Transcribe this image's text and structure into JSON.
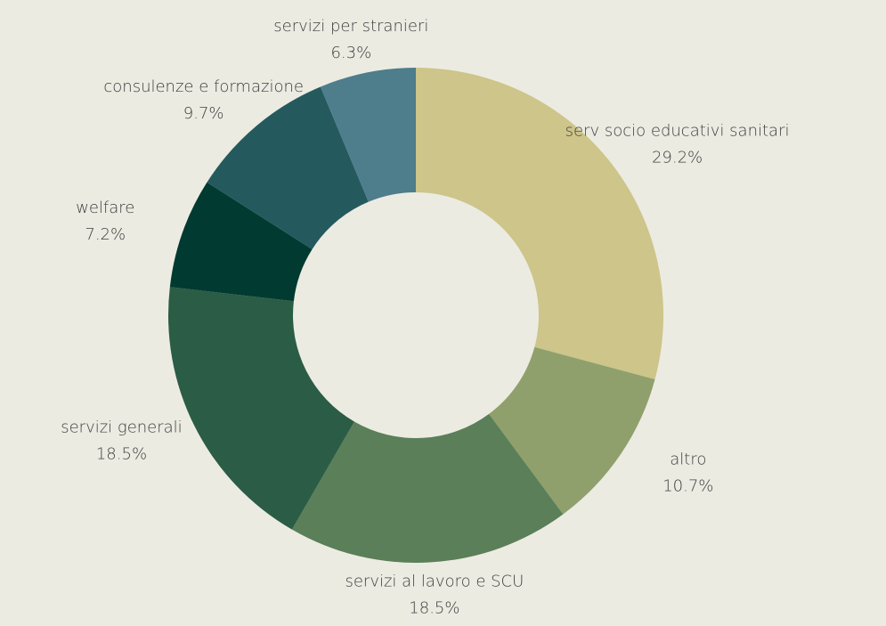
{
  "chart_data": {
    "type": "donut",
    "categories": [
      "serv socio educativi sanitari",
      "altro",
      "servizi al lavoro e SCU",
      "servizi generali",
      "welfare",
      "consulenze e formazione",
      "servizi per stranieri"
    ],
    "values": [
      29.2,
      10.7,
      18.5,
      18.5,
      7.2,
      9.7,
      6.3
    ],
    "value_labels": [
      "29.2%",
      "10.7%",
      "18.5%",
      "18.5%",
      "7.2%",
      "9.7%",
      "6.3%"
    ],
    "colors": [
      "#cdc589",
      "#8fa06c",
      "#5b7f58",
      "#2b5c46",
      "#003a30",
      "#245a5e",
      "#4e7d8c"
    ]
  }
}
